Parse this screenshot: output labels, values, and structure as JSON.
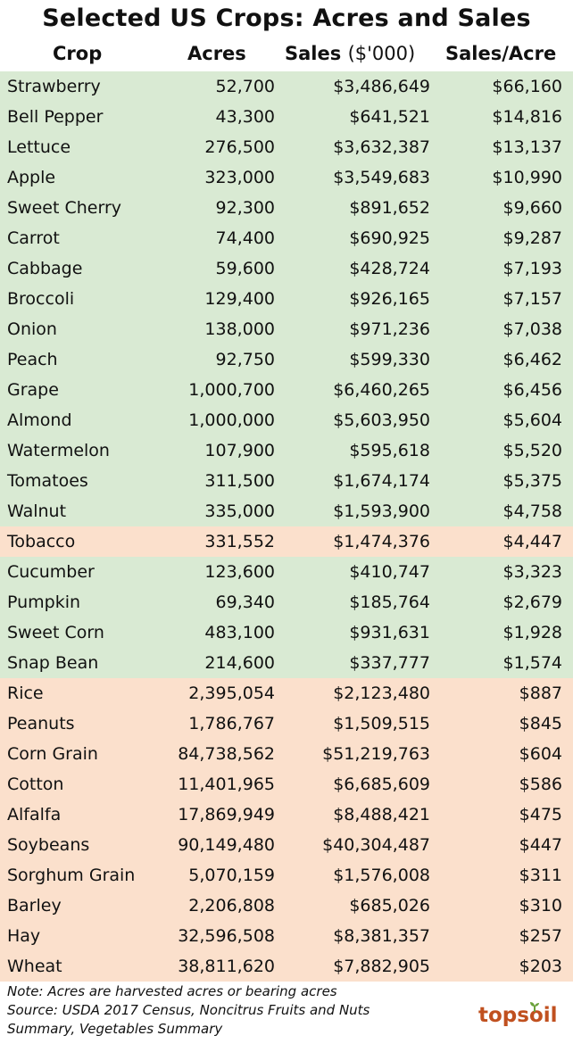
{
  "title": "Selected US Crops:  Acres and Sales",
  "columns": {
    "crop": "Crop",
    "acres": "Acres",
    "sales_main": "Sales",
    "sales_unit": "($'000)",
    "sales_per_acre": "Sales/Acre"
  },
  "colors": {
    "green_row": "#d9ead3",
    "orange_row": "#fbe0cc",
    "logo_brown": "#c0501f",
    "logo_green": "#6aa13b"
  },
  "chart_data": {
    "type": "table",
    "title": "Selected US Crops:  Acres and Sales",
    "headers": [
      "Crop",
      "Acres",
      "Sales ($'000)",
      "Sales/Acre"
    ],
    "rows": [
      {
        "crop": "Strawberry",
        "acres": "52,700",
        "sales": "$3,486,649",
        "sales_per_acre": "$66,160",
        "group": "green"
      },
      {
        "crop": "Bell Pepper",
        "acres": "43,300",
        "sales": "$641,521",
        "sales_per_acre": "$14,816",
        "group": "green"
      },
      {
        "crop": "Lettuce",
        "acres": "276,500",
        "sales": "$3,632,387",
        "sales_per_acre": "$13,137",
        "group": "green"
      },
      {
        "crop": "Apple",
        "acres": "323,000",
        "sales": "$3,549,683",
        "sales_per_acre": "$10,990",
        "group": "green"
      },
      {
        "crop": "Sweet Cherry",
        "acres": "92,300",
        "sales": "$891,652",
        "sales_per_acre": "$9,660",
        "group": "green"
      },
      {
        "crop": "Carrot",
        "acres": "74,400",
        "sales": "$690,925",
        "sales_per_acre": "$9,287",
        "group": "green"
      },
      {
        "crop": "Cabbage",
        "acres": "59,600",
        "sales": "$428,724",
        "sales_per_acre": "$7,193",
        "group": "green"
      },
      {
        "crop": "Broccoli",
        "acres": "129,400",
        "sales": "$926,165",
        "sales_per_acre": "$7,157",
        "group": "green"
      },
      {
        "crop": "Onion",
        "acres": "138,000",
        "sales": "$971,236",
        "sales_per_acre": "$7,038",
        "group": "green"
      },
      {
        "crop": "Peach",
        "acres": "92,750",
        "sales": "$599,330",
        "sales_per_acre": "$6,462",
        "group": "green"
      },
      {
        "crop": "Grape",
        "acres": "1,000,700",
        "sales": "$6,460,265",
        "sales_per_acre": "$6,456",
        "group": "green"
      },
      {
        "crop": "Almond",
        "acres": "1,000,000",
        "sales": "$5,603,950",
        "sales_per_acre": "$5,604",
        "group": "green"
      },
      {
        "crop": "Watermelon",
        "acres": "107,900",
        "sales": "$595,618",
        "sales_per_acre": "$5,520",
        "group": "green"
      },
      {
        "crop": "Tomatoes",
        "acres": "311,500",
        "sales": "$1,674,174",
        "sales_per_acre": "$5,375",
        "group": "green"
      },
      {
        "crop": "Walnut",
        "acres": "335,000",
        "sales": "$1,593,900",
        "sales_per_acre": "$4,758",
        "group": "green"
      },
      {
        "crop": "Tobacco",
        "acres": "331,552",
        "sales": "$1,474,376",
        "sales_per_acre": "$4,447",
        "group": "orange"
      },
      {
        "crop": "Cucumber",
        "acres": "123,600",
        "sales": "$410,747",
        "sales_per_acre": "$3,323",
        "group": "green"
      },
      {
        "crop": "Pumpkin",
        "acres": "69,340",
        "sales": "$185,764",
        "sales_per_acre": "$2,679",
        "group": "green"
      },
      {
        "crop": "Sweet Corn",
        "acres": "483,100",
        "sales": "$931,631",
        "sales_per_acre": "$1,928",
        "group": "green"
      },
      {
        "crop": "Snap Bean",
        "acres": "214,600",
        "sales": "$337,777",
        "sales_per_acre": "$1,574",
        "group": "green"
      },
      {
        "crop": "Rice",
        "acres": "2,395,054",
        "sales": "$2,123,480",
        "sales_per_acre": "$887",
        "group": "orange"
      },
      {
        "crop": "Peanuts",
        "acres": "1,786,767",
        "sales": "$1,509,515",
        "sales_per_acre": "$845",
        "group": "orange"
      },
      {
        "crop": "Corn Grain",
        "acres": "84,738,562",
        "sales": "$51,219,763",
        "sales_per_acre": "$604",
        "group": "orange"
      },
      {
        "crop": "Cotton",
        "acres": "11,401,965",
        "sales": "$6,685,609",
        "sales_per_acre": "$586",
        "group": "orange"
      },
      {
        "crop": "Alfalfa",
        "acres": "17,869,949",
        "sales": "$8,488,421",
        "sales_per_acre": "$475",
        "group": "orange"
      },
      {
        "crop": "Soybeans",
        "acres": "90,149,480",
        "sales": "$40,304,487",
        "sales_per_acre": "$447",
        "group": "orange"
      },
      {
        "crop": "Sorghum Grain",
        "acres": "5,070,159",
        "sales": "$1,576,008",
        "sales_per_acre": "$311",
        "group": "orange"
      },
      {
        "crop": "Barley",
        "acres": "2,206,808",
        "sales": "$685,026",
        "sales_per_acre": "$310",
        "group": "orange"
      },
      {
        "crop": "Hay",
        "acres": "32,596,508",
        "sales": "$8,381,357",
        "sales_per_acre": "$257",
        "group": "orange"
      },
      {
        "crop": "Wheat",
        "acres": "38,811,620",
        "sales": "$7,882,905",
        "sales_per_acre": "$203",
        "group": "orange"
      }
    ]
  },
  "notes": {
    "line1": "Note: Acres are harvested acres or bearing acres",
    "line2": "Source: USDA 2017 Census, Noncitrus Fruits and Nuts",
    "line3": "Summary, Vegetables Summary"
  },
  "logo": {
    "text_top": "top",
    "text_soil": "soil",
    "alt": "topsoil"
  }
}
